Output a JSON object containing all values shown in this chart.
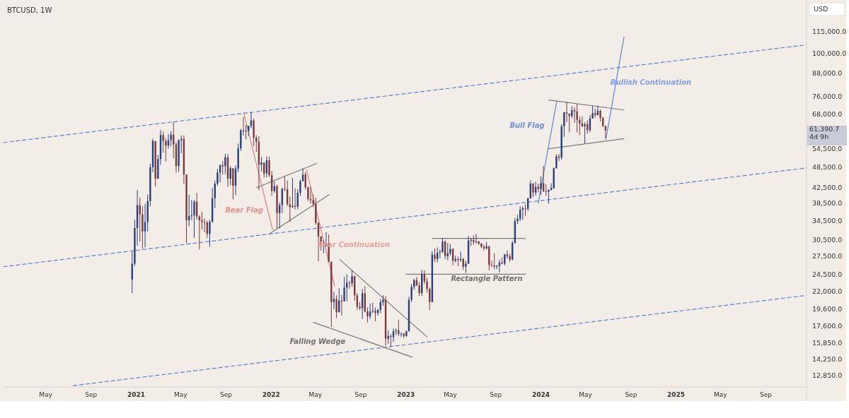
{
  "chart_data": {
    "type": "candlestick",
    "title": "BTCUSD, 1W",
    "ylabel": "USD",
    "log": true,
    "xlim": [
      "2020-01-08",
      "2025-12-20"
    ],
    "ylim": [
      12000,
      141000
    ],
    "xticks": [
      {
        "value": "2020-05-01",
        "label": "May"
      },
      {
        "value": "2020-09-01",
        "label": "Sep"
      },
      {
        "value": "2021-01-01",
        "label": "2021"
      },
      {
        "value": "2021-05-01",
        "label": "May"
      },
      {
        "value": "2021-09-01",
        "label": "Sep"
      },
      {
        "value": "2022-01-01",
        "label": "2022"
      },
      {
        "value": "2022-05-01",
        "label": "May"
      },
      {
        "value": "2022-09-01",
        "label": "Sep"
      },
      {
        "value": "2023-01-01",
        "label": "2023"
      },
      {
        "value": "2023-05-01",
        "label": "May"
      },
      {
        "value": "2023-09-01",
        "label": "Sep"
      },
      {
        "value": "2024-01-01",
        "label": "2024"
      },
      {
        "value": "2024-05-01",
        "label": "May"
      },
      {
        "value": "2024-09-01",
        "label": "Sep"
      },
      {
        "value": "2025-01-01",
        "label": "2025"
      },
      {
        "value": "2025-05-01",
        "label": "May"
      },
      {
        "value": "2025-09-01",
        "label": "Sep"
      }
    ],
    "yticks": [
      {
        "value": 115000,
        "label": "115,000.0"
      },
      {
        "value": 100000,
        "label": "100,000.0"
      },
      {
        "value": 88000,
        "label": "88,000.0"
      },
      {
        "value": 76000,
        "label": "76,000.0"
      },
      {
        "value": 68000,
        "label": "68,000.0"
      },
      {
        "value": 54500,
        "label": "54,500.0"
      },
      {
        "value": 48500,
        "label": "48,500.0"
      },
      {
        "value": 42500,
        "label": "42,500.0"
      },
      {
        "value": 38500,
        "label": "38,500.0"
      },
      {
        "value": 34500,
        "label": "34,500.0"
      },
      {
        "value": 30500,
        "label": "30,500.0"
      },
      {
        "value": 27500,
        "label": "27,500.0"
      },
      {
        "value": 24500,
        "label": "24,500.0"
      },
      {
        "value": 22000,
        "label": "22,000.0"
      },
      {
        "value": 19600,
        "label": "19,600.0"
      },
      {
        "value": 17600,
        "label": "17,600.0"
      },
      {
        "value": 15850,
        "label": "15,850.0"
      },
      {
        "value": 14250,
        "label": "14,250.0"
      },
      {
        "value": 12850,
        "label": "12,850.0"
      }
    ],
    "x": [
      "2020-12-21",
      "2020-12-28",
      "2021-01-04",
      "2021-01-11",
      "2021-01-18",
      "2021-01-25",
      "2021-02-01",
      "2021-02-08",
      "2021-02-15",
      "2021-02-22",
      "2021-03-01",
      "2021-03-08",
      "2021-03-15",
      "2021-03-22",
      "2021-03-29",
      "2021-04-05",
      "2021-04-12",
      "2021-04-19",
      "2021-04-26",
      "2021-05-03",
      "2021-05-10",
      "2021-05-17",
      "2021-05-24",
      "2021-05-31",
      "2021-06-07",
      "2021-06-14",
      "2021-06-21",
      "2021-06-28",
      "2021-07-05",
      "2021-07-12",
      "2021-07-19",
      "2021-07-26",
      "2021-08-02",
      "2021-08-09",
      "2021-08-16",
      "2021-08-23",
      "2021-08-30",
      "2021-09-06",
      "2021-09-13",
      "2021-09-20",
      "2021-09-27",
      "2021-10-04",
      "2021-10-11",
      "2021-10-18",
      "2021-10-25",
      "2021-11-01",
      "2021-11-08",
      "2021-11-15",
      "2021-11-22",
      "2021-11-29",
      "2021-12-06",
      "2021-12-13",
      "2021-12-20",
      "2021-12-27",
      "2022-01-03",
      "2022-01-10",
      "2022-01-17",
      "2022-01-24",
      "2022-01-31",
      "2022-02-07",
      "2022-02-14",
      "2022-02-21",
      "2022-02-28",
      "2022-03-07",
      "2022-03-14",
      "2022-03-21",
      "2022-03-28",
      "2022-04-04",
      "2022-04-11",
      "2022-04-18",
      "2022-04-25",
      "2022-05-02",
      "2022-05-09",
      "2022-05-16",
      "2022-05-23",
      "2022-05-30",
      "2022-06-06",
      "2022-06-13",
      "2022-06-20",
      "2022-06-27",
      "2022-07-04",
      "2022-07-11",
      "2022-07-18",
      "2022-07-25",
      "2022-08-01",
      "2022-08-08",
      "2022-08-15",
      "2022-08-22",
      "2022-08-29",
      "2022-09-05",
      "2022-09-12",
      "2022-09-19",
      "2022-09-26",
      "2022-10-03",
      "2022-10-10",
      "2022-10-17",
      "2022-10-24",
      "2022-10-31",
      "2022-11-07",
      "2022-11-14",
      "2022-11-21",
      "2022-11-28",
      "2022-12-05",
      "2022-12-12",
      "2022-12-19",
      "2022-12-26",
      "2023-01-02",
      "2023-01-09",
      "2023-01-16",
      "2023-01-23",
      "2023-01-30",
      "2023-02-06",
      "2023-02-13",
      "2023-02-20",
      "2023-02-27",
      "2023-03-06",
      "2023-03-13",
      "2023-03-20",
      "2023-03-27",
      "2023-04-03",
      "2023-04-10",
      "2023-04-17",
      "2023-04-24",
      "2023-05-01",
      "2023-05-08",
      "2023-05-15",
      "2023-05-22",
      "2023-05-29",
      "2023-06-05",
      "2023-06-12",
      "2023-06-19",
      "2023-06-26",
      "2023-07-03",
      "2023-07-10",
      "2023-07-17",
      "2023-07-24",
      "2023-07-31",
      "2023-08-07",
      "2023-08-14",
      "2023-08-21",
      "2023-08-28",
      "2023-09-04",
      "2023-09-11",
      "2023-09-18",
      "2023-09-25",
      "2023-10-02",
      "2023-10-09",
      "2023-10-16",
      "2023-10-23",
      "2023-10-30",
      "2023-11-06",
      "2023-11-13",
      "2023-11-20",
      "2023-11-27",
      "2023-12-04",
      "2023-12-11",
      "2023-12-18",
      "2023-12-25",
      "2024-01-01",
      "2024-01-08",
      "2024-01-15",
      "2024-01-22",
      "2024-01-29",
      "2024-02-05",
      "2024-02-12",
      "2024-02-19",
      "2024-02-26",
      "2024-03-04",
      "2024-03-11",
      "2024-03-18",
      "2024-03-25",
      "2024-04-01",
      "2024-04-08",
      "2024-04-15",
      "2024-04-22",
      "2024-04-29",
      "2024-05-06",
      "2024-05-13",
      "2024-05-20",
      "2024-05-27",
      "2024-06-03",
      "2024-06-10",
      "2024-06-17",
      "2024-06-24"
    ],
    "ohlc": [
      [
        23800,
        28400,
        21800,
        26300
      ],
      [
        26300,
        34800,
        25900,
        33000
      ],
      [
        33000,
        42000,
        29500,
        38200
      ],
      [
        38200,
        40100,
        30300,
        36000
      ],
      [
        36000,
        37900,
        28900,
        32300
      ],
      [
        32300,
        38500,
        29200,
        34300
      ],
      [
        34300,
        40900,
        32300,
        39200
      ],
      [
        39200,
        49700,
        37900,
        48600
      ],
      [
        48600,
        58300,
        47100,
        57500
      ],
      [
        57400,
        57500,
        43000,
        45200
      ],
      [
        45200,
        52600,
        45100,
        51200
      ],
      [
        51200,
        61700,
        49400,
        59700
      ],
      [
        59700,
        61000,
        53300,
        57400
      ],
      [
        57400,
        58500,
        50500,
        55800
      ],
      [
        55800,
        60100,
        54700,
        57800
      ],
      [
        57800,
        61200,
        55500,
        59800
      ],
      [
        59800,
        64900,
        51500,
        56200
      ],
      [
        56200,
        57000,
        47000,
        49000
      ],
      [
        49000,
        58000,
        47200,
        57800
      ],
      [
        57800,
        59500,
        53100,
        58200
      ],
      [
        58200,
        59600,
        43800,
        46400
      ],
      [
        46400,
        46400,
        30000,
        34700
      ],
      [
        34700,
        40800,
        33400,
        35600
      ],
      [
        35600,
        39500,
        34700,
        35800
      ],
      [
        35800,
        39400,
        31000,
        39100
      ],
      [
        39100,
        41300,
        34800,
        35500
      ],
      [
        35500,
        35800,
        28800,
        34700
      ],
      [
        34700,
        36600,
        32700,
        34300
      ],
      [
        34300,
        35100,
        32100,
        34200
      ],
      [
        34200,
        34600,
        31000,
        31800
      ],
      [
        31800,
        34800,
        29300,
        34300
      ],
      [
        34300,
        42600,
        34200,
        39900
      ],
      [
        39900,
        44700,
        37500,
        43800
      ],
      [
        43800,
        48100,
        43200,
        47000
      ],
      [
        47000,
        49400,
        44200,
        49300
      ],
      [
        49300,
        50500,
        46400,
        48900
      ],
      [
        48900,
        52900,
        46500,
        51800
      ],
      [
        51800,
        52900,
        42900,
        45200
      ],
      [
        45200,
        48900,
        43400,
        48300
      ],
      [
        48300,
        48300,
        39600,
        43200
      ],
      [
        43200,
        49200,
        40700,
        48200
      ],
      [
        48200,
        56500,
        47100,
        54800
      ],
      [
        54800,
        62000,
        54000,
        61500
      ],
      [
        61500,
        67000,
        59500,
        61100
      ],
      [
        61100,
        63700,
        58100,
        61300
      ],
      [
        61300,
        63300,
        59300,
        63300
      ],
      [
        63300,
        69000,
        62300,
        65500
      ],
      [
        65500,
        66300,
        55600,
        58600
      ],
      [
        58600,
        59600,
        53600,
        57200
      ],
      [
        57200,
        59200,
        42000,
        49400
      ],
      [
        49400,
        51900,
        47300,
        50100
      ],
      [
        50100,
        50100,
        45500,
        46700
      ],
      [
        46700,
        52100,
        45600,
        50800
      ],
      [
        50800,
        52000,
        45700,
        46200
      ],
      [
        46200,
        47500,
        40500,
        41800
      ],
      [
        41800,
        44400,
        41300,
        43100
      ],
      [
        43100,
        43500,
        33000,
        36300
      ],
      [
        36300,
        38900,
        32900,
        38200
      ],
      [
        38200,
        42600,
        36300,
        42400
      ],
      [
        42400,
        45800,
        41700,
        42200
      ],
      [
        42200,
        44700,
        38000,
        38400
      ],
      [
        38400,
        40300,
        34300,
        37700
      ],
      [
        37700,
        45400,
        37500,
        38000
      ],
      [
        38000,
        42500,
        37200,
        37800
      ],
      [
        37800,
        42300,
        37200,
        41300
      ],
      [
        41300,
        44900,
        40500,
        44500
      ],
      [
        44500,
        48200,
        44400,
        46400
      ],
      [
        46400,
        47100,
        42200,
        42800
      ],
      [
        42800,
        42900,
        39200,
        39700
      ],
      [
        39700,
        42900,
        38600,
        39400
      ],
      [
        39400,
        40800,
        37700,
        38500
      ],
      [
        38500,
        40000,
        33700,
        34100
      ],
      [
        34100,
        34300,
        26700,
        31300
      ],
      [
        31300,
        31300,
        28600,
        29400
      ],
      [
        29400,
        30600,
        28100,
        29500
      ],
      [
        29500,
        32200,
        29300,
        29900
      ],
      [
        29900,
        31700,
        26600,
        26600
      ],
      [
        26600,
        26700,
        17600,
        20600
      ],
      [
        20600,
        22000,
        19700,
        21000
      ],
      [
        21000,
        21500,
        18600,
        19300
      ],
      [
        19300,
        22500,
        19300,
        20800
      ],
      [
        20800,
        21600,
        18900,
        20700
      ],
      [
        20700,
        24200,
        20700,
        22600
      ],
      [
        22600,
        24600,
        20700,
        23300
      ],
      [
        23300,
        23600,
        22400,
        23200
      ],
      [
        23200,
        25200,
        22700,
        24300
      ],
      [
        24300,
        24400,
        20800,
        21500
      ],
      [
        21500,
        21800,
        19600,
        20000
      ],
      [
        20000,
        20600,
        19600,
        19800
      ],
      [
        19800,
        22400,
        18500,
        21800
      ],
      [
        21800,
        22800,
        19300,
        19400
      ],
      [
        19400,
        19900,
        18100,
        18800
      ],
      [
        18800,
        20400,
        18500,
        19400
      ],
      [
        19400,
        20500,
        19200,
        19500
      ],
      [
        19500,
        19900,
        18200,
        19200
      ],
      [
        19200,
        19700,
        18900,
        19600
      ],
      [
        19600,
        21000,
        19200,
        20600
      ],
      [
        20600,
        21500,
        20100,
        20900
      ],
      [
        20900,
        21400,
        15600,
        16300
      ],
      [
        16300,
        17200,
        15800,
        16600
      ],
      [
        16600,
        16800,
        15500,
        16500
      ],
      [
        16500,
        17400,
        16000,
        17100
      ],
      [
        17100,
        17400,
        16700,
        17200
      ],
      [
        17200,
        18400,
        16600,
        16800
      ],
      [
        16800,
        17000,
        16500,
        16850
      ],
      [
        16850,
        16900,
        16400,
        16600
      ],
      [
        16600,
        17200,
        16500,
        17100
      ],
      [
        17100,
        21300,
        17100,
        20900
      ],
      [
        20900,
        23100,
        20600,
        22700
      ],
      [
        22700,
        23900,
        22300,
        23700
      ],
      [
        23700,
        24200,
        22800,
        22900
      ],
      [
        22900,
        23400,
        21400,
        21800
      ],
      [
        21800,
        25300,
        21400,
        24600
      ],
      [
        24600,
        25200,
        23100,
        23500
      ],
      [
        23500,
        24000,
        21900,
        22400
      ],
      [
        22400,
        22600,
        19600,
        20600
      ],
      [
        20600,
        28500,
        20600,
        27900
      ],
      [
        27900,
        29000,
        26600,
        27100
      ],
      [
        27100,
        29200,
        26500,
        28200
      ],
      [
        28200,
        28800,
        27200,
        28300
      ],
      [
        28300,
        31000,
        28200,
        30300
      ],
      [
        30300,
        30500,
        27100,
        27600
      ],
      [
        27600,
        30000,
        26900,
        28100
      ],
      [
        28100,
        29800,
        27700,
        28900
      ],
      [
        28900,
        29000,
        26000,
        26800
      ],
      [
        26800,
        27700,
        26500,
        27100
      ],
      [
        27100,
        27500,
        25900,
        26900
      ],
      [
        26900,
        28400,
        26600,
        27100
      ],
      [
        27100,
        27300,
        25300,
        25800
      ],
      [
        25800,
        26800,
        24800,
        26300
      ],
      [
        26300,
        31400,
        26300,
        30500
      ],
      [
        30500,
        31000,
        29500,
        30600
      ],
      [
        30600,
        31500,
        29700,
        30200
      ],
      [
        30200,
        31800,
        29900,
        30300
      ],
      [
        30300,
        30400,
        29600,
        29900
      ],
      [
        29900,
        30000,
        29000,
        29300
      ],
      [
        29300,
        29700,
        28600,
        29000
      ],
      [
        29000,
        30200,
        28800,
        29400
      ],
      [
        29400,
        29400,
        25200,
        26100
      ],
      [
        26100,
        26800,
        25800,
        26000
      ],
      [
        26000,
        28100,
        25400,
        25800
      ],
      [
        25800,
        26100,
        25400,
        25900
      ],
      [
        25900,
        27000,
        24900,
        26500
      ],
      [
        26500,
        27400,
        26300,
        26300
      ],
      [
        26300,
        28000,
        26000,
        27900
      ],
      [
        27900,
        28600,
        27200,
        27600
      ],
      [
        27600,
        28000,
        26600,
        27000
      ],
      [
        27000,
        30400,
        26900,
        30000
      ],
      [
        30000,
        35200,
        29900,
        34500
      ],
      [
        34500,
        35900,
        33900,
        35000
      ],
      [
        35000,
        37900,
        34500,
        37100
      ],
      [
        37100,
        37900,
        34800,
        37400
      ],
      [
        37400,
        38400,
        35700,
        37300
      ],
      [
        37300,
        40000,
        36800,
        39900
      ],
      [
        39900,
        44700,
        39900,
        43800
      ],
      [
        43800,
        44000,
        40200,
        41400
      ],
      [
        41400,
        44300,
        40600,
        42900
      ],
      [
        42900,
        43800,
        41400,
        42300
      ],
      [
        42300,
        45900,
        40800,
        43900
      ],
      [
        43900,
        49000,
        41500,
        41700
      ],
      [
        41700,
        43600,
        40500,
        41600
      ],
      [
        41600,
        42200,
        38500,
        42100
      ],
      [
        42100,
        43900,
        41900,
        42600
      ],
      [
        42600,
        48500,
        42300,
        48300
      ],
      [
        48300,
        52800,
        48200,
        52100
      ],
      [
        52100,
        52900,
        50600,
        51700
      ],
      [
        51700,
        64000,
        51000,
        63100
      ],
      [
        63100,
        69200,
        59000,
        68900
      ],
      [
        68900,
        73800,
        64800,
        68400
      ],
      [
        68400,
        68400,
        60800,
        67300
      ],
      [
        67300,
        71800,
        66500,
        69900
      ],
      [
        69900,
        71300,
        64500,
        69300
      ],
      [
        69300,
        72800,
        60700,
        65700
      ],
      [
        65700,
        67200,
        59600,
        64300
      ],
      [
        64300,
        67200,
        62800,
        63100
      ],
      [
        63100,
        64700,
        56500,
        63900
      ],
      [
        63900,
        65500,
        60200,
        61500
      ],
      [
        61500,
        67700,
        60800,
        66300
      ],
      [
        66300,
        71900,
        66300,
        68600
      ],
      [
        68600,
        70600,
        66700,
        67800
      ],
      [
        67800,
        72000,
        67600,
        69600
      ],
      [
        69600,
        70200,
        65100,
        66600
      ],
      [
        66600,
        67000,
        62900,
        63200
      ],
      [
        63200,
        63400,
        58400,
        61400
      ]
    ],
    "colors": [
      "#2b3f7d",
      "#2b3f7d",
      "#2b3f7d",
      "#7b3a3e",
      "#7b3a3e",
      "#2b3f7d",
      "#2b3f7d",
      "#2b3f7d",
      "#2b3f7d",
      "#7b3a3e",
      "#2b3f7d",
      "#2b3f7d",
      "#7b3a3e",
      "#7b3a3e",
      "#2b3f7d",
      "#2b3f7d",
      "#7b3a3e",
      "#7b3a3e",
      "#2b3f7d",
      "#2b3f7d",
      "#7b3a3e",
      "#7b3a3e",
      "#2b3f7d",
      "#2b3f7d",
      "#2b3f7d",
      "#7b3a3e",
      "#7b3a3e",
      "#7b3a3e",
      "#7b3a3e",
      "#7b3a3e",
      "#2b3f7d",
      "#2b3f7d",
      "#2b3f7d",
      "#2b3f7d",
      "#2b3f7d",
      "#7b3a3e",
      "#2b3f7d",
      "#7b3a3e",
      "#2b3f7d",
      "#7b3a3e",
      "#2b3f7d",
      "#2b3f7d",
      "#2b3f7d",
      "#7b3a3e",
      "#2b3f7d",
      "#2b3f7d",
      "#2b3f7d",
      "#7b3a3e",
      "#7b3a3e",
      "#7b3a3e",
      "#2b3f7d",
      "#7b3a3e",
      "#2b3f7d",
      "#7b3a3e",
      "#7b3a3e",
      "#2b3f7d",
      "#7b3a3e",
      "#2b3f7d",
      "#2b3f7d",
      "#7b3a3e",
      "#7b3a3e",
      "#7b3a3e",
      "#2b3f7d",
      "#7b3a3e",
      "#2b3f7d",
      "#2b3f7d",
      "#2b3f7d",
      "#7b3a3e",
      "#7b3a3e",
      "#7b3a3e",
      "#7b3a3e",
      "#7b3a3e",
      "#7b3a3e",
      "#7b3a3e",
      "#2b3f7d",
      "#2b3f7d",
      "#7b3a3e",
      "#7b3a3e",
      "#2b3f7d",
      "#7b3a3e",
      "#2b3f7d",
      "#7b3a3e",
      "#2b3f7d",
      "#2b3f7d",
      "#7b3a3e",
      "#2b3f7d",
      "#7b3a3e",
      "#7b3a3e",
      "#7b3a3e",
      "#2b3f7d",
      "#7b3a3e",
      "#7b3a3e",
      "#2b3f7d",
      "#2b3f7d",
      "#7b3a3e",
      "#2b3f7d",
      "#2b3f7d",
      "#2b3f7d",
      "#7b3a3e",
      "#2b3f7d",
      "#7b3a3e",
      "#2b3f7d",
      "#2b3f7d",
      "#7b3a3e",
      "#2b3f7d",
      "#7b3a3e",
      "#2b3f7d",
      "#2b3f7d",
      "#2b3f7d",
      "#2b3f7d",
      "#7b3a3e",
      "#7b3a3e",
      "#2b3f7d",
      "#7b3a3e",
      "#7b3a3e",
      "#7b3a3e",
      "#2b3f7d",
      "#7b3a3e",
      "#2b3f7d",
      "#2b3f7d",
      "#2b3f7d",
      "#7b3a3e",
      "#2b3f7d",
      "#2b3f7d",
      "#7b3a3e",
      "#2b3f7d",
      "#7b3a3e",
      "#2b3f7d",
      "#7b3a3e",
      "#2b3f7d",
      "#2b3f7d",
      "#2b3f7d",
      "#7b3a3e",
      "#2b3f7d",
      "#7b3a3e",
      "#7b3a3e",
      "#7b3a3e",
      "#2b3f7d",
      "#7b3a3e",
      "#7b3a3e",
      "#7b3a3e",
      "#2b3f7d",
      "#2b3f7d",
      "#7b3a3e",
      "#2b3f7d",
      "#7b3a3e",
      "#7b3a3e",
      "#2b3f7d",
      "#2b3f7d",
      "#2b3f7d",
      "#2b3f7d",
      "#2b3f7d",
      "#7b3a3e",
      "#2b3f7d",
      "#2b3f7d",
      "#7b3a3e",
      "#2b3f7d",
      "#7b3a3e",
      "#2b3f7d",
      "#7b3a3e",
      "#7b3a3e",
      "#2b3f7d",
      "#2b3f7d",
      "#2b3f7d",
      "#2b3f7d",
      "#7b3a3e",
      "#2b3f7d",
      "#2b3f7d",
      "#7b3a3e",
      "#7b3a3e",
      "#2b3f7d",
      "#7b3a3e",
      "#7b3a3e",
      "#7b3a3e",
      "#7b3a3e",
      "#2b3f7d",
      "#7b3a3e",
      "#2b3f7d",
      "#2b3f7d",
      "#7b3a3e",
      "#2b3f7d",
      "#7b3a3e",
      "#7b3a3e",
      "#7b3a3e"
    ],
    "series": [
      {
        "type": "line",
        "color": "#5b7fd6",
        "line_style": "dashed",
        "x": [
          "2020-01-08",
          "2025-12-20"
        ],
        "values": [
          56900,
          106000
        ]
      },
      {
        "type": "line",
        "color": "#5b7fd6",
        "line_style": "dashed",
        "x": [
          "2020-01-08",
          "2025-12-20"
        ],
        "values": [
          25800,
          48400
        ]
      },
      {
        "type": "line",
        "color": "#5b7fd6",
        "line_style": "dashed",
        "x": [
          "2020-07-15",
          "2025-12-20"
        ],
        "values": [
          12100,
          21500
        ]
      },
      {
        "type": "line",
        "color": "#e08080",
        "line_style": "solid",
        "x": [
          "2021-10-19",
          "2022-01-05"
        ],
        "values": [
          68800,
          32700
        ]
      },
      {
        "type": "line",
        "color": "#7a7a7a",
        "line_style": "solid",
        "x": [
          "2021-11-23",
          "2022-05-04"
        ],
        "values": [
          42700,
          49800
        ]
      },
      {
        "type": "line",
        "color": "#7a7a7a",
        "line_style": "solid",
        "x": [
          "2021-12-25",
          "2022-06-07"
        ],
        "values": [
          31700,
          40800
        ]
      },
      {
        "type": "line",
        "color": "#e08080",
        "line_style": "solid",
        "x": [
          "2022-04-07",
          "2022-06-22"
        ],
        "values": [
          47800,
          22800
        ]
      },
      {
        "type": "line",
        "color": "#7a7a7a",
        "line_style": "solid",
        "x": [
          "2022-07-06",
          "2023-02-27"
        ],
        "values": [
          27000,
          16500
        ]
      },
      {
        "type": "line",
        "color": "#7a7a7a",
        "line_style": "solid",
        "x": [
          "2022-04-26",
          "2023-01-18"
        ],
        "values": [
          18100,
          14500
        ]
      },
      {
        "type": "line",
        "color": "#7a7a7a",
        "line_style": "solid",
        "x": [
          "2023-03-13",
          "2023-11-20"
        ],
        "values": [
          30900,
          30900
        ]
      },
      {
        "type": "line",
        "color": "#7a7a7a",
        "line_style": "solid",
        "x": [
          "2023-01-01",
          "2023-11-20"
        ],
        "values": [
          24600,
          24600
        ]
      },
      {
        "type": "line",
        "color": "#5a85e0",
        "line_style": "solid",
        "x": [
          "2023-12-25",
          "2024-02-13"
        ],
        "values": [
          38700,
          74000
        ]
      },
      {
        "type": "line",
        "color": "#7a7a7a",
        "line_style": "solid",
        "x": [
          "2024-01-23",
          "2024-08-13"
        ],
        "values": [
          74600,
          70000
        ]
      },
      {
        "type": "line",
        "color": "#7a7a7a",
        "line_style": "solid",
        "x": [
          "2024-01-23",
          "2024-08-13"
        ],
        "values": [
          54700,
          58300
        ]
      },
      {
        "type": "line",
        "color": "#5a85e0",
        "line_style": "solid",
        "x": [
          "2024-06-25",
          "2024-08-13"
        ],
        "values": [
          58100,
          111400
        ]
      }
    ],
    "annotations": [
      "Bear Flag",
      "Bear Continuation",
      "Falling Wedge",
      "Rectangle Pattern",
      "Bull Flag",
      "Bullish Continuation",
      "61,390.7\n4d 9h"
    ]
  }
}
